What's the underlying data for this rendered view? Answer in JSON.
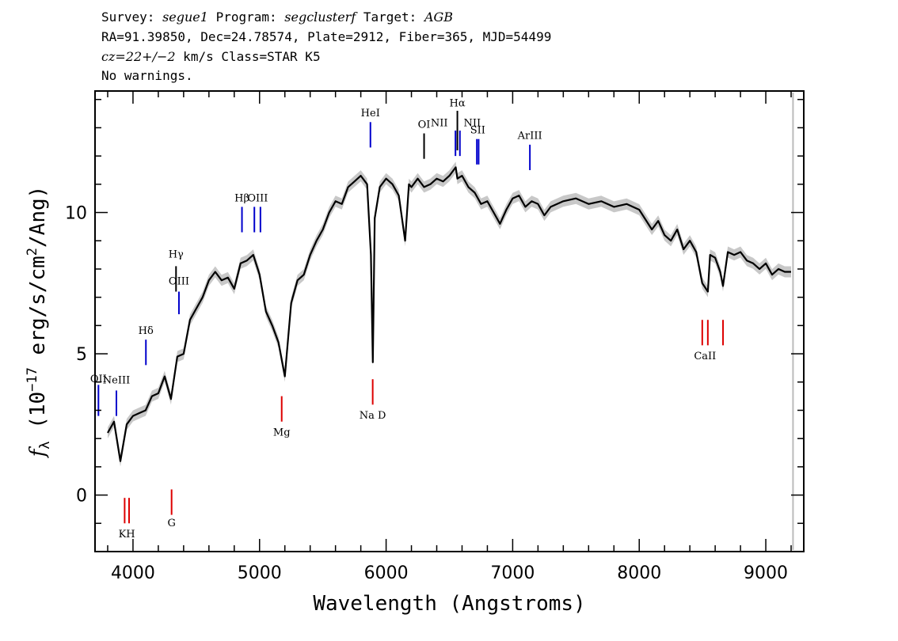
{
  "header": {
    "line1": {
      "survey_label": "Survey: ",
      "survey": "segue1",
      "program_label": " Program: ",
      "program": "segclusterf",
      "target_label": " Target: ",
      "target": "AGB"
    },
    "line2": "RA=91.39850, Dec=24.78574, Plate=2912, Fiber=365, MJD=54499",
    "line3": {
      "cz": "cz=22+/−2",
      "rest": " km/s Class=STAR K5"
    },
    "line4": "No warnings."
  },
  "colors": {
    "flux": "#000000",
    "error": "#c8c8c8",
    "emission": "#0000cc",
    "absorption": "#dd0000",
    "marker": "#000000",
    "cutoff": "#bbbbbb"
  },
  "chart_data": {
    "type": "line",
    "title": "",
    "xlabel": "Wavelength (Angstroms)",
    "ylabel_parts": {
      "f": "f",
      "sub": "λ",
      "a": " (10",
      "exp": "−17",
      "b": " erg/s/cm",
      "exp2": "2",
      "c": "/Ang)"
    },
    "xlim": [
      3700,
      9300
    ],
    "ylim": [
      -2,
      14.3
    ],
    "xticks": [
      4000,
      5000,
      6000,
      7000,
      8000,
      9000
    ],
    "xtick_labels": [
      "4000",
      "5000",
      "6000",
      "7000",
      "8000",
      "9000"
    ],
    "yticks": [
      0,
      5,
      10
    ],
    "ytick_labels": [
      "0",
      "5",
      "10"
    ],
    "x_minor_step": 200,
    "y_minor_step": 1,
    "cutoff_x": 9215,
    "series": [
      {
        "x": [
          3800,
          3850,
          3900,
          3950,
          4000,
          4050,
          4100,
          4150,
          4200,
          4250,
          4300,
          4350,
          4400,
          4450,
          4500,
          4550,
          4600,
          4650,
          4700,
          4750,
          4800,
          4850,
          4900,
          4950,
          5000,
          5050,
          5100,
          5150,
          5200,
          5250,
          5300,
          5350,
          5400,
          5450,
          5500,
          5550,
          5600,
          5650,
          5700,
          5750,
          5800,
          5850,
          5880,
          5895,
          5910,
          5950,
          6000,
          6050,
          6100,
          6150,
          6180,
          6200,
          6250,
          6300,
          6350,
          6400,
          6450,
          6500,
          6550,
          6563,
          6600,
          6650,
          6700,
          6750,
          6800,
          6850,
          6900,
          6950,
          7000,
          7050,
          7100,
          7150,
          7200,
          7250,
          7300,
          7400,
          7500,
          7600,
          7700,
          7800,
          7900,
          8000,
          8100,
          8150,
          8200,
          8250,
          8300,
          8350,
          8400,
          8450,
          8498,
          8542,
          8560,
          8600,
          8640,
          8662,
          8700,
          8750,
          8800,
          8850,
          8900,
          8950,
          9000,
          9050,
          9100,
          9150,
          9200
        ],
        "y": [
          2.2,
          2.6,
          1.2,
          2.5,
          2.8,
          2.9,
          3.0,
          3.5,
          3.6,
          4.2,
          3.4,
          4.9,
          5.0,
          6.2,
          6.6,
          7.0,
          7.6,
          7.9,
          7.6,
          7.7,
          7.3,
          8.2,
          8.3,
          8.5,
          7.8,
          6.5,
          6.0,
          5.4,
          4.2,
          6.8,
          7.6,
          7.8,
          8.5,
          9.0,
          9.4,
          10.0,
          10.4,
          10.3,
          10.9,
          11.1,
          11.3,
          11.0,
          8.5,
          4.7,
          9.8,
          10.9,
          11.2,
          11.0,
          10.6,
          9.0,
          11.0,
          10.9,
          11.2,
          10.9,
          11.0,
          11.2,
          11.1,
          11.3,
          11.6,
          11.2,
          11.3,
          10.9,
          10.7,
          10.3,
          10.4,
          10.0,
          9.6,
          10.1,
          10.5,
          10.6,
          10.2,
          10.4,
          10.3,
          9.9,
          10.2,
          10.4,
          10.5,
          10.3,
          10.4,
          10.2,
          10.3,
          10.1,
          9.4,
          9.7,
          9.2,
          9.0,
          9.4,
          8.7,
          9.0,
          8.6,
          7.5,
          7.2,
          8.5,
          8.4,
          7.9,
          7.4,
          8.6,
          8.5,
          8.6,
          8.3,
          8.2,
          8.0,
          8.2,
          7.8,
          8.0,
          7.9,
          7.9
        ]
      }
    ],
    "emission_lines": [
      {
        "label": "OII",
        "x": 3727,
        "y0": 2.8,
        "y1": 3.9
      },
      {
        "label": "NeIII",
        "x": 3869,
        "y0": 2.8,
        "y1": 3.7
      },
      {
        "label": "Hδ",
        "x": 4102,
        "y0": 4.6,
        "y1": 5.5
      },
      {
        "label": "Hγ",
        "x": 4340,
        "y0": 7.2,
        "y1": 8.1
      },
      {
        "label": "OIII",
        "x": 4363,
        "y0": 6.4,
        "y1": 7.2
      },
      {
        "label": "Hβ",
        "x": 4861,
        "y0": 9.3,
        "y1": 10.2
      },
      {
        "label": "OIII",
        "x": 4959,
        "y0": 9.3,
        "y1": 10.2
      },
      {
        "label": "OIII",
        "x": 5007,
        "y0": 9.3,
        "y1": 10.2
      },
      {
        "label": "HeI",
        "x": 5876,
        "y0": 12.3,
        "y1": 13.2
      },
      {
        "label": "OI",
        "x": 6300,
        "y0": 11.9,
        "y1": 12.8
      },
      {
        "label": "NII",
        "x": 6548,
        "y0": 12.0,
        "y1": 12.9
      },
      {
        "label": "Hα",
        "x": 6563,
        "y0": 12.2,
        "y1": 13.6
      },
      {
        "label": "NII",
        "x": 6583,
        "y0": 12.0,
        "y1": 12.9
      },
      {
        "label": "SII",
        "x": 6717,
        "y0": 11.7,
        "y1": 12.6
      },
      {
        "label": "SII",
        "x": 6731,
        "y0": 11.7,
        "y1": 12.6
      },
      {
        "label": "ArIII",
        "x": 7136,
        "y0": 11.5,
        "y1": 12.4
      }
    ],
    "emission_labels": [
      {
        "text": "OII",
        "x": 3727,
        "y": 4.0
      },
      {
        "text": "NeIII",
        "x": 3869,
        "y": 3.95
      },
      {
        "text": "Hδ",
        "x": 4102,
        "y": 5.7
      },
      {
        "text": "Hγ",
        "x": 4340,
        "y": 8.4
      },
      {
        "text": "OIII",
        "x": 4363,
        "y": 7.45
      },
      {
        "text": "Hβ",
        "x": 4861,
        "y": 10.4
      },
      {
        "text": "OIII",
        "x": 4985,
        "y": 10.4
      },
      {
        "text": "HeI",
        "x": 5876,
        "y": 13.4
      },
      {
        "text": "OI",
        "x": 6300,
        "y": 13.0
      },
      {
        "text": "NII",
        "x": 6420,
        "y": 13.05
      },
      {
        "text": "Hα",
        "x": 6563,
        "y": 13.75
      },
      {
        "text": "NII",
        "x": 6680,
        "y": 13.05
      },
      {
        "text": "SII",
        "x": 6724,
        "y": 12.8
      },
      {
        "text": "ArIII",
        "x": 7136,
        "y": 12.6
      }
    ],
    "absorption_lines": [
      {
        "label": "K",
        "x": 3934,
        "y0": -1.0,
        "y1": -0.1
      },
      {
        "label": "H",
        "x": 3969,
        "y0": -1.0,
        "y1": -0.1
      },
      {
        "label": "G",
        "x": 4305,
        "y0": -0.7,
        "y1": 0.2
      },
      {
        "label": "Mg",
        "x": 5175,
        "y0": 2.6,
        "y1": 3.5
      },
      {
        "label": "Na D",
        "x": 5894,
        "y0": 3.2,
        "y1": 4.1
      },
      {
        "label": "CaII",
        "x": 8498,
        "y0": 5.3,
        "y1": 6.2
      },
      {
        "label": "CaII",
        "x": 8542,
        "y0": 5.3,
        "y1": 6.2
      },
      {
        "label": "CaII",
        "x": 8662,
        "y0": 5.3,
        "y1": 6.2
      }
    ],
    "absorption_labels": [
      {
        "text": "KH",
        "x": 3951,
        "y": -1.5
      },
      {
        "text": "G",
        "x": 4305,
        "y": -1.1
      },
      {
        "text": "Mg",
        "x": 5175,
        "y": 2.1
      },
      {
        "text": "Na D",
        "x": 5894,
        "y": 2.7
      },
      {
        "text": "CaII",
        "x": 8520,
        "y": 4.8
      }
    ]
  }
}
